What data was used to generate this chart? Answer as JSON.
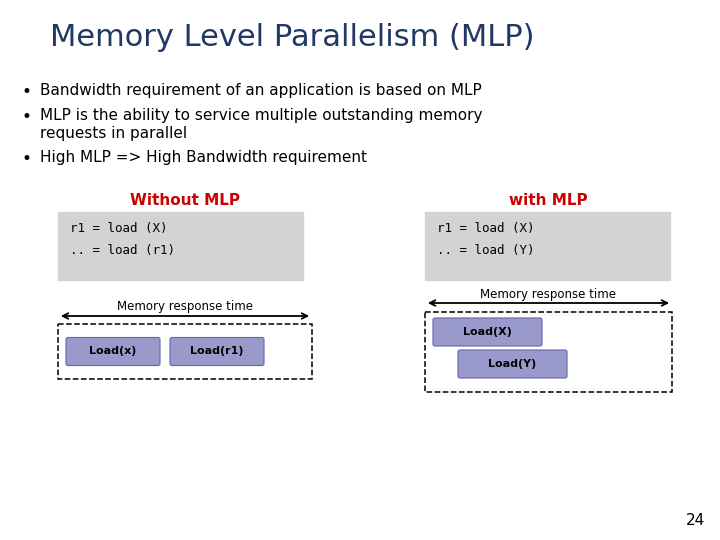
{
  "title": "Memory Level Parallelism (MLP)",
  "title_color": "#1F3864",
  "title_fontsize": 22,
  "bullet_fontsize": 11,
  "without_mlp_label": "Without MLP",
  "with_mlp_label": "with MLP",
  "label_color": "#CC0000",
  "label_fontsize": 11,
  "code_without": "r1 = load (X)\n.. = load (r1)",
  "code_with": "r1 = load (X)\n.. = load (Y)",
  "code_fontsize": 9,
  "code_bg": "#D3D3D3",
  "mem_response_label": "Memory response time",
  "load_box_color": "#9999CC",
  "load_box_border": "#6666AA",
  "page_number": "24",
  "bg_color": "#FFFFFF",
  "bullet1": "Bandwidth requirement of an application is based on MLP",
  "bullet2a": "MLP is the ability to service multiple outstanding memory",
  "bullet2b": "requests in parallel",
  "bullet3": "High MLP => High Bandwidth requirement"
}
